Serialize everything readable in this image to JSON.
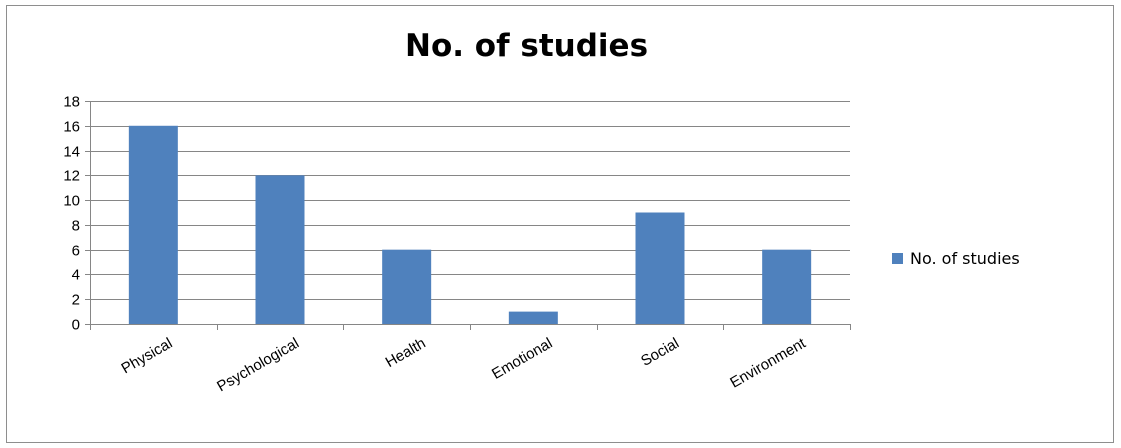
{
  "chart_data": {
    "type": "bar",
    "title": "No. of studies",
    "categories": [
      "Physical",
      "Psychological",
      "Health",
      "Emotional",
      "Social",
      "Environment"
    ],
    "series": [
      {
        "name": "No. of studies",
        "values": [
          16,
          12,
          6,
          1,
          9,
          6
        ],
        "color": "#4f81bd"
      }
    ],
    "ylim": [
      0,
      18
    ],
    "yticks": [
      0,
      2,
      4,
      6,
      8,
      10,
      12,
      14,
      16,
      18
    ],
    "grid": true,
    "legend_position": "right"
  }
}
